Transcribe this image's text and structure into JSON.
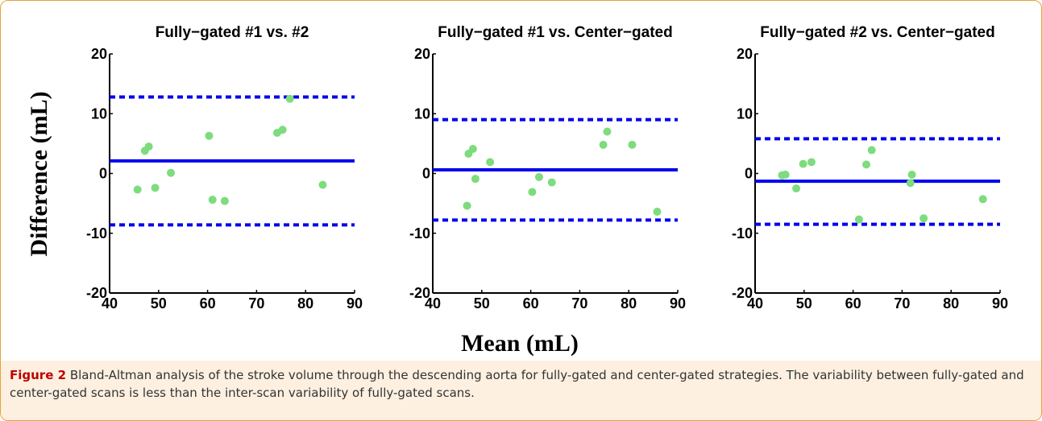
{
  "figure": {
    "ylabel": "Difference (mL)",
    "xlabel": "Mean (mL)",
    "caption_label": "Figure 2",
    "caption_text": " Bland-Altman analysis of the stroke volume through the descending aorta for fully-gated and center-gated strategies. The variability between fully-gated and center-gated scans is less than the inter-scan variability of fully-gated scans."
  },
  "colors": {
    "point": "#7ddc7d",
    "line": "#0000ee"
  },
  "chart_data": [
    {
      "type": "scatter",
      "title": "Fully−gated #1 vs. #2",
      "xlim": [
        40,
        90
      ],
      "ylim": [
        -20,
        20
      ],
      "xticks": [
        40,
        50,
        60,
        70,
        80,
        90
      ],
      "yticks": [
        20,
        10,
        0,
        -10,
        -20
      ],
      "mean_line": 2.1,
      "upper_limit": 12.8,
      "lower_limit": -8.6,
      "points": [
        [
          45.7,
          -2.7
        ],
        [
          47.2,
          3.8
        ],
        [
          48.0,
          4.5
        ],
        [
          49.3,
          -2.4
        ],
        [
          52.5,
          0.1
        ],
        [
          60.3,
          6.3
        ],
        [
          61.0,
          -4.4
        ],
        [
          63.5,
          -4.6
        ],
        [
          74.2,
          6.8
        ],
        [
          75.3,
          7.3
        ],
        [
          76.8,
          12.5
        ],
        [
          83.5,
          -1.9
        ]
      ]
    },
    {
      "type": "scatter",
      "title": "Fully−gated #1 vs. Center−gated",
      "xlim": [
        40,
        90
      ],
      "ylim": [
        -20,
        20
      ],
      "xticks": [
        40,
        50,
        60,
        70,
        80,
        90
      ],
      "yticks": [
        20,
        10,
        0,
        -10,
        -20
      ],
      "mean_line": 0.6,
      "upper_limit": 9.0,
      "lower_limit": -7.8,
      "points": [
        [
          47.0,
          -5.4
        ],
        [
          47.3,
          3.3
        ],
        [
          48.2,
          4.1
        ],
        [
          48.7,
          -0.9
        ],
        [
          51.7,
          1.9
        ],
        [
          60.3,
          -3.1
        ],
        [
          61.7,
          -0.6
        ],
        [
          64.3,
          -1.5
        ],
        [
          74.8,
          4.8
        ],
        [
          75.6,
          7.0
        ],
        [
          80.7,
          4.8
        ],
        [
          85.8,
          -6.4
        ]
      ]
    },
    {
      "type": "scatter",
      "title": "Fully−gated #2 vs. Center−gated",
      "xlim": [
        40,
        90
      ],
      "ylim": [
        -20,
        20
      ],
      "xticks": [
        40,
        50,
        60,
        70,
        80,
        90
      ],
      "yticks": [
        20,
        10,
        0,
        -10,
        -20
      ],
      "mean_line": -1.3,
      "upper_limit": 5.8,
      "lower_limit": -8.5,
      "points": [
        [
          45.5,
          -0.3
        ],
        [
          46.2,
          -0.2
        ],
        [
          48.4,
          -2.5
        ],
        [
          49.8,
          1.6
        ],
        [
          51.5,
          1.9
        ],
        [
          61.2,
          -7.7
        ],
        [
          62.7,
          1.5
        ],
        [
          63.8,
          3.9
        ],
        [
          71.7,
          -1.6
        ],
        [
          72.0,
          -0.2
        ],
        [
          74.4,
          -7.5
        ],
        [
          86.5,
          -4.3
        ]
      ]
    }
  ]
}
